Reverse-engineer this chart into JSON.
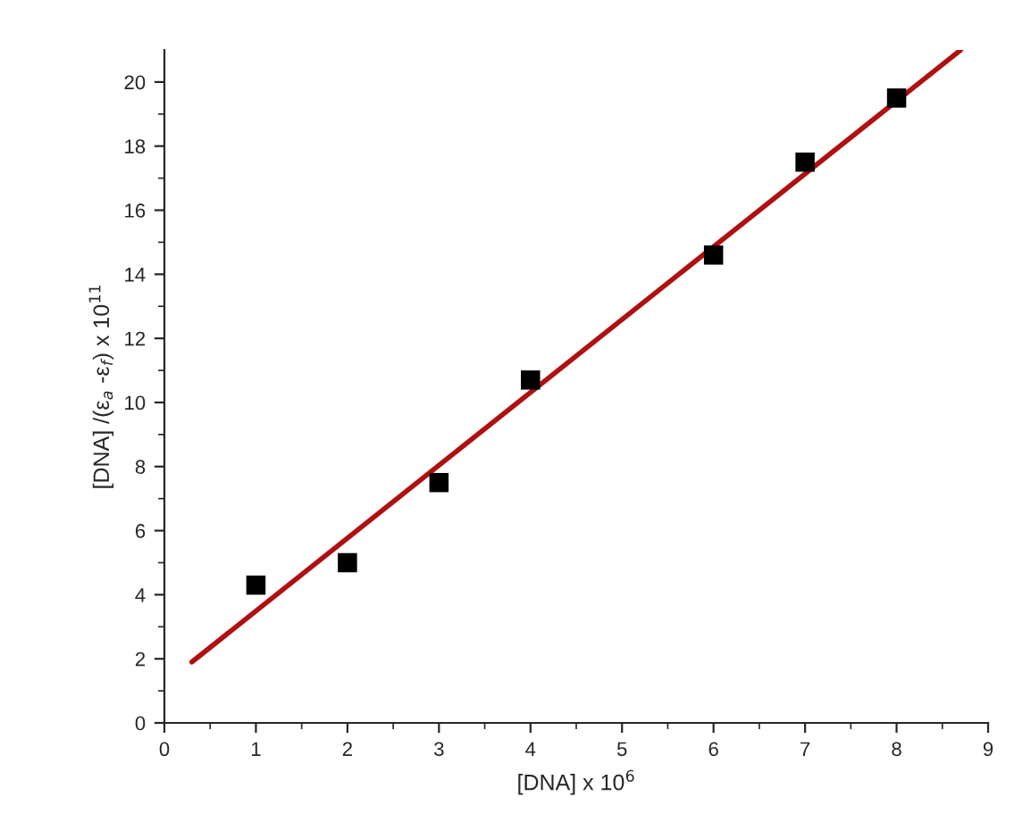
{
  "chart_data": {
    "type": "scatter",
    "xlabel": "[DNA] x 10$^{6}$",
    "ylabel": "[DNA] /(ε$_{a}$ -ε$_{f}$) x 10$^{11}$",
    "xlim": [
      0,
      9
    ],
    "ylim": [
      0,
      21
    ],
    "xticks": [
      0,
      1,
      2,
      3,
      4,
      5,
      6,
      7,
      8,
      9
    ],
    "yticks": [
      0,
      2,
      4,
      6,
      8,
      10,
      12,
      14,
      16,
      18,
      20
    ],
    "grid": false,
    "series": [
      {
        "marker": "square",
        "color": "#000000",
        "x": [
          1,
          2,
          3,
          4,
          6,
          7,
          8
        ],
        "values": [
          4.3,
          5.0,
          7.5,
          10.7,
          14.6,
          17.5,
          19.5
        ]
      },
      {
        "type": "line",
        "color": "#b01010",
        "x": [
          0.3,
          8.7
        ],
        "values": [
          1.9,
          21.0
        ]
      }
    ]
  }
}
